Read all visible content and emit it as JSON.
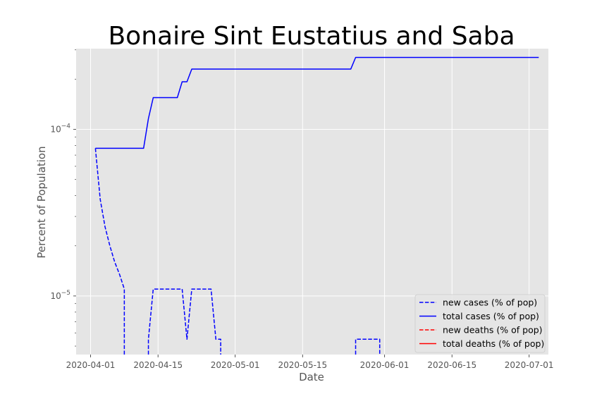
{
  "chart_data": {
    "type": "line",
    "title": "Bonaire Sint Eustatius and Saba",
    "xlabel": "Date",
    "ylabel": "Percent of Population",
    "yscale": "log",
    "xlim": [
      "2020-03-29",
      "2020-07-05"
    ],
    "ylim": [
      4.45e-06,
      0.000305
    ],
    "grid": true,
    "legend_position": "lower-right",
    "x_ticks": [
      "2020-04-01",
      "2020-04-15",
      "2020-05-01",
      "2020-05-15",
      "2020-06-01",
      "2020-06-15",
      "2020-07-01"
    ],
    "y_ticks": [
      {
        "value": 1e-05,
        "base": "10",
        "exp": "−5"
      },
      {
        "value": 0.0001,
        "base": "10",
        "exp": "−4"
      }
    ],
    "series": [
      {
        "name": "new cases (% of pop)",
        "color": "#0000ff",
        "dash": "dashed",
        "points": [
          [
            "2020-04-02",
            7.7e-05
          ],
          [
            "2020-04-03",
            3.8e-05
          ],
          [
            "2020-04-04",
            2.6e-05
          ],
          [
            "2020-04-05",
            2e-05
          ],
          [
            "2020-04-06",
            1.6e-05
          ],
          [
            "2020-04-07",
            1.35e-05
          ],
          [
            "2020-04-08",
            1.1e-05
          ],
          [
            "2020-04-08",
            4.45e-06
          ],
          null,
          [
            "2020-04-13",
            4.45e-06
          ],
          [
            "2020-04-13",
            5.5e-06
          ],
          [
            "2020-04-14",
            1.1e-05
          ],
          [
            "2020-04-20",
            1.1e-05
          ],
          [
            "2020-04-21",
            5.5e-06
          ],
          [
            "2020-04-22",
            1.1e-05
          ],
          [
            "2020-04-26",
            1.1e-05
          ],
          [
            "2020-04-27",
            5.5e-06
          ],
          [
            "2020-04-28",
            5.5e-06
          ],
          [
            "2020-04-28",
            4.45e-06
          ],
          null,
          [
            "2020-05-26",
            4.45e-06
          ],
          [
            "2020-05-26",
            5.5e-06
          ],
          [
            "2020-05-31",
            5.5e-06
          ],
          [
            "2020-05-31",
            4.45e-06
          ]
        ]
      },
      {
        "name": "total cases (% of pop)",
        "color": "#0000ff",
        "dash": "solid",
        "points": [
          [
            "2020-04-02",
            7.7e-05
          ],
          [
            "2020-04-12",
            7.7e-05
          ],
          [
            "2020-04-13",
            0.000116
          ],
          [
            "2020-04-14",
            0.000155
          ],
          [
            "2020-04-19",
            0.000155
          ],
          [
            "2020-04-20",
            0.000193
          ],
          [
            "2020-04-21",
            0.000193
          ],
          [
            "2020-04-22",
            0.00023
          ],
          [
            "2020-05-25",
            0.00023
          ],
          [
            "2020-05-26",
            0.00027
          ],
          [
            "2020-07-03",
            0.00027
          ]
        ]
      },
      {
        "name": "new deaths (% of pop)",
        "color": "#ff0000",
        "dash": "dashed",
        "points": []
      },
      {
        "name": "total deaths (% of pop)",
        "color": "#ff0000",
        "dash": "solid",
        "points": []
      }
    ]
  }
}
